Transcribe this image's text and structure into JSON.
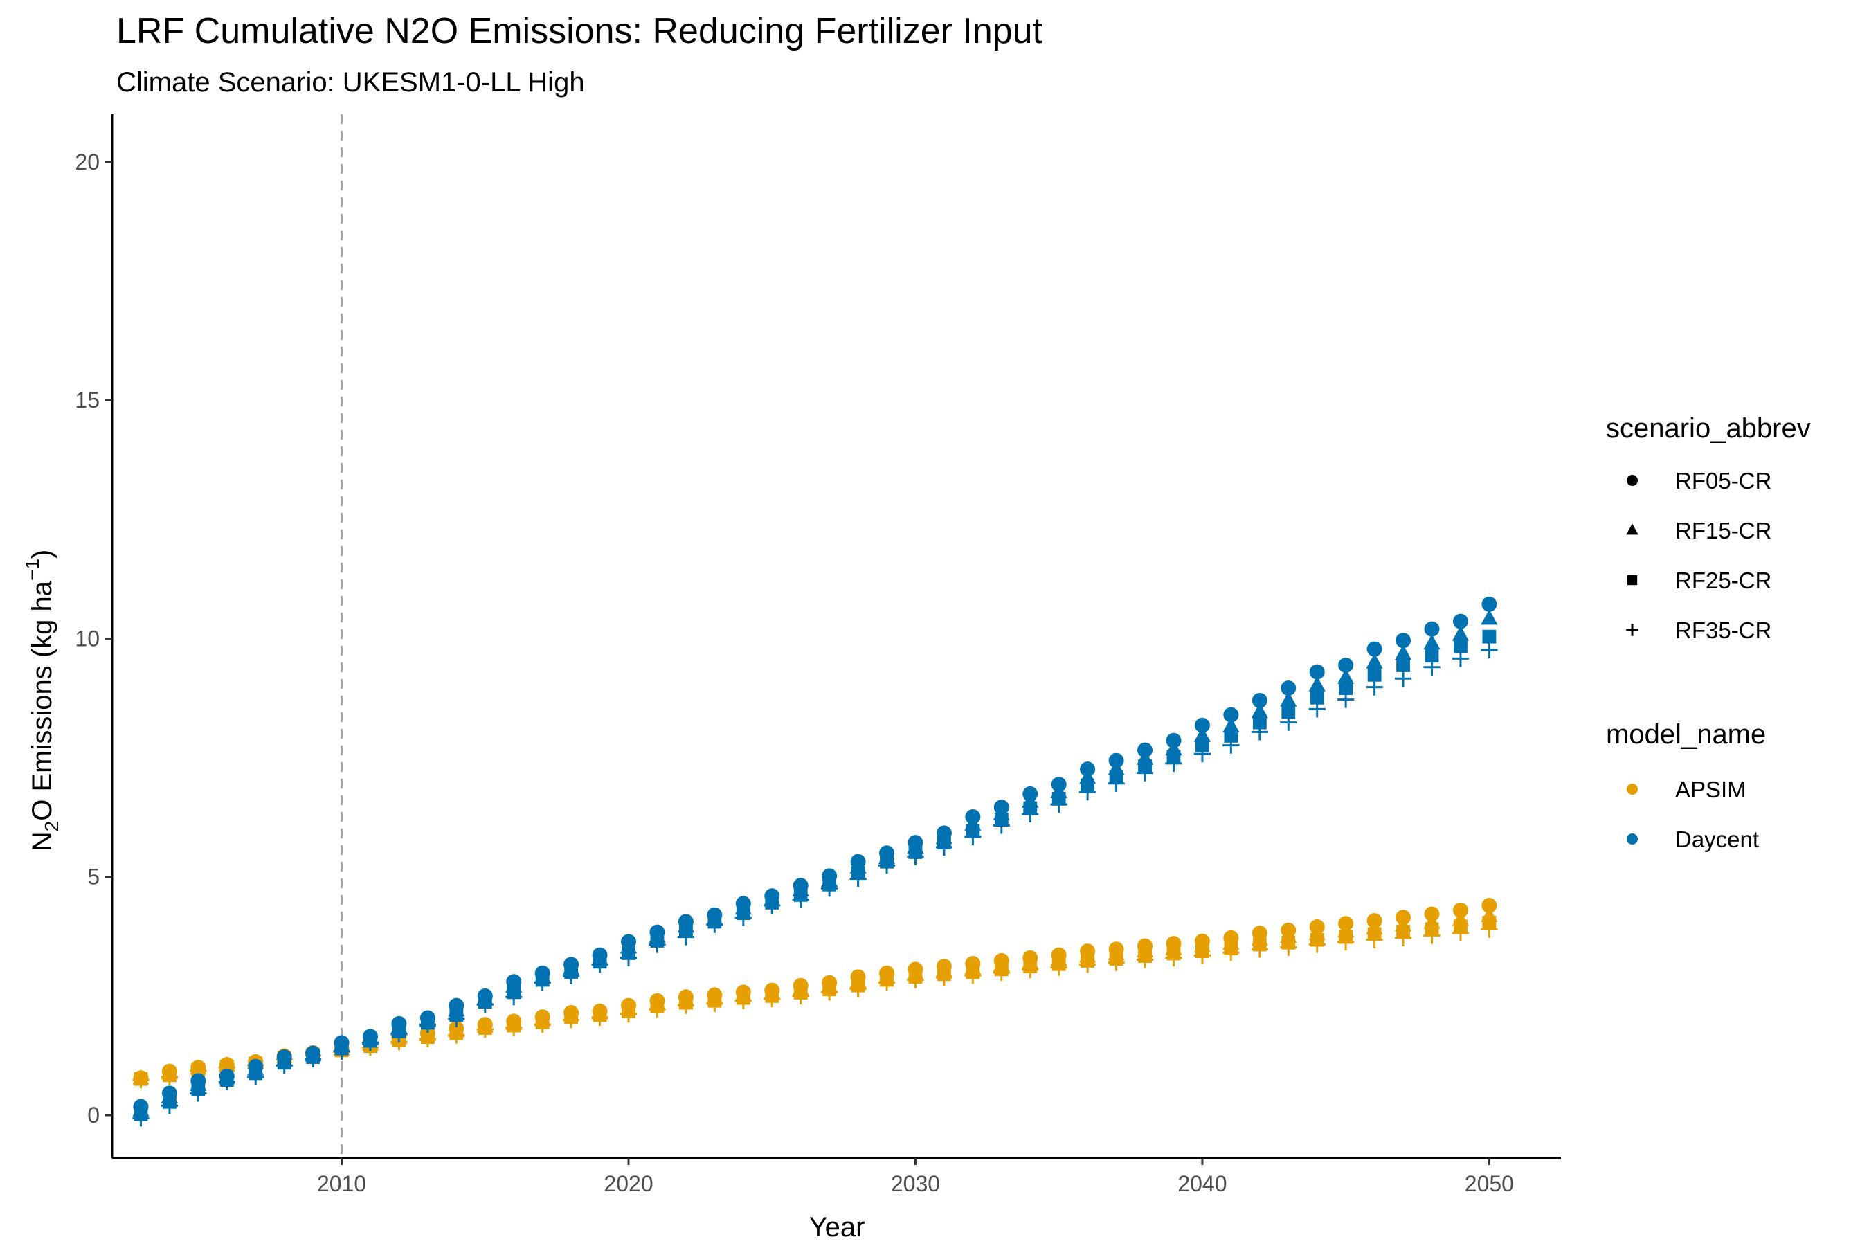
{
  "chart_data": {
    "type": "scatter",
    "title": "LRF  Cumulative N2O Emissions: Reducing Fertilizer Input",
    "subtitle": "Climate Scenario: UKESM1-0-LL High",
    "xlabel": "Year",
    "ylabel_main": "N",
    "ylabel_sub": "2",
    "ylabel_rest": "O Emissions (kg ha",
    "ylabel_sup": "−1",
    "ylabel_close": ")",
    "xlim": [
      2002,
      2052.5
    ],
    "ylim": [
      -0.9,
      21
    ],
    "xticks": [
      2010,
      2020,
      2030,
      2040,
      2050
    ],
    "yticks": [
      0,
      5,
      10,
      15,
      20
    ],
    "vline_x": 2010,
    "grid": false,
    "legend_placement": "right",
    "shape_legend": {
      "title": "scenario_abbrev",
      "entries": [
        {
          "label": "RF05-CR",
          "shape": "circle"
        },
        {
          "label": "RF15-CR",
          "shape": "triangle"
        },
        {
          "label": "RF25-CR",
          "shape": "square"
        },
        {
          "label": "RF35-CR",
          "shape": "plus"
        }
      ]
    },
    "color_legend": {
      "title": "model_name",
      "entries": [
        {
          "label": "APSIM",
          "color": "#E69F00"
        },
        {
          "label": "Daycent",
          "color": "#0072B2"
        }
      ]
    },
    "x": [
      2003,
      2004,
      2005,
      2006,
      2007,
      2008,
      2009,
      2010,
      2011,
      2012,
      2013,
      2014,
      2015,
      2016,
      2017,
      2018,
      2019,
      2020,
      2021,
      2022,
      2023,
      2024,
      2025,
      2026,
      2027,
      2028,
      2029,
      2030,
      2031,
      2032,
      2033,
      2034,
      2035,
      2036,
      2037,
      2038,
      2039,
      2040,
      2041,
      2042,
      2043,
      2044,
      2045,
      2046,
      2047,
      2048,
      2049,
      2050
    ],
    "series": [
      {
        "model": "APSIM",
        "scenario": "RF05-CR",
        "values": [
          0.78,
          0.92,
          1.0,
          1.06,
          1.12,
          1.24,
          1.31,
          1.4,
          1.52,
          1.65,
          1.72,
          1.82,
          1.9,
          1.97,
          2.06,
          2.15,
          2.18,
          2.3,
          2.4,
          2.48,
          2.52,
          2.58,
          2.62,
          2.72,
          2.78,
          2.9,
          2.98,
          3.06,
          3.12,
          3.18,
          3.24,
          3.3,
          3.36,
          3.44,
          3.48,
          3.55,
          3.6,
          3.65,
          3.72,
          3.82,
          3.88,
          3.95,
          4.02,
          4.08,
          4.15,
          4.22,
          4.3,
          4.4
        ]
      },
      {
        "model": "APSIM",
        "scenario": "RF15-CR",
        "values": [
          0.77,
          0.88,
          0.98,
          1.04,
          1.1,
          1.22,
          1.29,
          1.38,
          1.48,
          1.62,
          1.68,
          1.77,
          1.86,
          1.92,
          2.0,
          2.1,
          2.14,
          2.24,
          2.34,
          2.42,
          2.46,
          2.52,
          2.56,
          2.64,
          2.7,
          2.8,
          2.9,
          2.97,
          3.03,
          3.08,
          3.14,
          3.2,
          3.26,
          3.33,
          3.38,
          3.44,
          3.49,
          3.54,
          3.6,
          3.69,
          3.74,
          3.8,
          3.86,
          3.92,
          3.98,
          4.04,
          4.1,
          4.18
        ]
      },
      {
        "model": "APSIM",
        "scenario": "RF25-CR",
        "values": [
          0.76,
          0.84,
          0.96,
          1.02,
          1.08,
          1.2,
          1.27,
          1.36,
          1.45,
          1.58,
          1.64,
          1.72,
          1.83,
          1.88,
          1.95,
          2.05,
          2.1,
          2.18,
          2.28,
          2.36,
          2.4,
          2.46,
          2.5,
          2.57,
          2.64,
          2.72,
          2.84,
          2.9,
          2.96,
          3.0,
          3.06,
          3.12,
          3.17,
          3.24,
          3.28,
          3.34,
          3.39,
          3.44,
          3.5,
          3.58,
          3.62,
          3.68,
          3.74,
          3.8,
          3.85,
          3.9,
          3.96,
          4.04
        ]
      },
      {
        "model": "APSIM",
        "scenario": "RF35-CR",
        "values": [
          0.74,
          0.8,
          0.93,
          1.0,
          1.05,
          1.17,
          1.25,
          1.33,
          1.42,
          1.54,
          1.6,
          1.68,
          1.8,
          1.84,
          1.9,
          2.0,
          2.05,
          2.12,
          2.22,
          2.3,
          2.34,
          2.4,
          2.44,
          2.5,
          2.58,
          2.65,
          2.78,
          2.84,
          2.89,
          2.93,
          2.99,
          3.05,
          3.1,
          3.16,
          3.2,
          3.26,
          3.3,
          3.35,
          3.41,
          3.48,
          3.52,
          3.58,
          3.63,
          3.68,
          3.72,
          3.77,
          3.82,
          3.9
        ]
      },
      {
        "model": "Daycent",
        "scenario": "RF05-CR",
        "values": [
          0.18,
          0.46,
          0.72,
          0.82,
          1.02,
          1.22,
          1.3,
          1.52,
          1.65,
          1.92,
          2.04,
          2.3,
          2.5,
          2.8,
          2.98,
          3.16,
          3.36,
          3.64,
          3.84,
          4.06,
          4.2,
          4.44,
          4.6,
          4.82,
          5.02,
          5.32,
          5.5,
          5.72,
          5.92,
          6.26,
          6.46,
          6.74,
          6.94,
          7.26,
          7.44,
          7.66,
          7.86,
          8.18,
          8.4,
          8.7,
          8.96,
          9.3,
          9.44,
          9.78,
          9.96,
          10.2,
          10.36,
          10.72
        ]
      },
      {
        "model": "Daycent",
        "scenario": "RF15-CR",
        "values": [
          0.1,
          0.38,
          0.64,
          0.78,
          0.96,
          1.16,
          1.26,
          1.46,
          1.6,
          1.84,
          1.98,
          2.2,
          2.44,
          2.7,
          2.9,
          3.08,
          3.28,
          3.52,
          3.74,
          3.96,
          4.12,
          4.34,
          4.52,
          4.72,
          4.92,
          5.2,
          5.4,
          5.62,
          5.82,
          6.1,
          6.32,
          6.58,
          6.78,
          7.08,
          7.26,
          7.48,
          7.68,
          7.96,
          8.16,
          8.46,
          8.7,
          9.02,
          9.18,
          9.5,
          9.68,
          9.9,
          10.08,
          10.42
        ]
      },
      {
        "model": "Daycent",
        "scenario": "RF25-CR",
        "values": [
          0.02,
          0.28,
          0.54,
          0.74,
          0.88,
          1.1,
          1.22,
          1.4,
          1.56,
          1.76,
          1.94,
          2.1,
          2.38,
          2.58,
          2.84,
          3.0,
          3.22,
          3.4,
          3.66,
          3.86,
          4.06,
          4.24,
          4.46,
          4.62,
          4.84,
          5.08,
          5.32,
          5.52,
          5.72,
          5.96,
          6.2,
          6.44,
          6.64,
          6.92,
          7.1,
          7.32,
          7.52,
          7.76,
          7.96,
          8.24,
          8.46,
          8.76,
          8.96,
          9.24,
          9.44,
          9.64,
          9.84,
          10.04
        ]
      },
      {
        "model": "Daycent",
        "scenario": "RF35-CR",
        "values": [
          -0.06,
          0.2,
          0.46,
          0.7,
          0.8,
          1.04,
          1.18,
          1.34,
          1.52,
          1.7,
          1.9,
          2.02,
          2.32,
          2.48,
          2.78,
          2.92,
          3.16,
          3.3,
          3.58,
          3.74,
          4.0,
          4.14,
          4.4,
          4.52,
          4.76,
          4.96,
          5.24,
          5.42,
          5.62,
          5.84,
          6.08,
          6.32,
          6.52,
          6.78,
          6.96,
          7.18,
          7.38,
          7.58,
          7.76,
          8.04,
          8.24,
          8.52,
          8.72,
          8.98,
          9.16,
          9.4,
          9.58,
          9.76
        ]
      }
    ]
  }
}
